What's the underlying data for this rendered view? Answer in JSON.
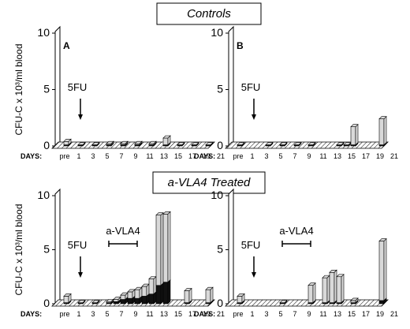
{
  "headers": [
    "Controls",
    "a-VLA4 Treated"
  ],
  "chart_data": [
    {
      "type": "bar",
      "label": "A",
      "ylabel": "CFU-C x 10³/ml blood",
      "xlabel": "DAYS:",
      "ylim": [
        0,
        10
      ],
      "yticks": [
        0,
        5,
        10
      ],
      "xticks": [
        {
          "value": -1,
          "label": "pre"
        },
        1,
        3,
        5,
        7,
        9,
        11,
        13,
        15,
        17,
        19,
        21
      ],
      "x": [
        -1,
        1,
        3,
        5,
        7,
        9,
        11,
        13,
        15,
        17,
        19
      ],
      "series": [
        {
          "color": "#111111",
          "values": [
            0.1,
            0.1,
            0.1,
            0.1,
            0.1,
            0.1,
            0.1,
            0.1,
            0.1,
            0.1,
            0.1
          ]
        },
        {
          "color": "#d9d9d9",
          "values": [
            0.3,
            0,
            0,
            0.1,
            0.1,
            0.1,
            0.1,
            0.6,
            0,
            0,
            0
          ]
        }
      ],
      "annotations": [
        {
          "text": "5FU",
          "x": 1
        }
      ]
    },
    {
      "type": "bar",
      "label": "B",
      "xlabel": "DAYS:",
      "ylim": [
        0,
        10
      ],
      "yticks": [
        0,
        5,
        10
      ],
      "xticks": [
        {
          "value": -1,
          "label": "pre"
        },
        1,
        3,
        5,
        7,
        9,
        11,
        13,
        15,
        17,
        19,
        21
      ],
      "x": [
        -1,
        3,
        5,
        7,
        9,
        13,
        14,
        15,
        19
      ],
      "series": [
        {
          "color": "#111111",
          "values": [
            0.1,
            0.1,
            0.1,
            0.1,
            0.1,
            0.1,
            0.1,
            0.1,
            0.1
          ]
        },
        {
          "color": "#d9d9d9",
          "values": [
            0,
            0,
            0,
            0,
            0,
            0,
            0,
            1.6,
            2.3
          ]
        }
      ],
      "annotations": [
        {
          "text": "5FU",
          "x": 1
        }
      ]
    },
    {
      "type": "bar",
      "ylabel": "CFU-C x 10³/ml blood",
      "xlabel": "DAYS:",
      "ylim": [
        0,
        10
      ],
      "yticks": [
        0,
        5,
        10
      ],
      "xticks": [
        {
          "value": -1,
          "label": "pre"
        },
        1,
        3,
        5,
        7,
        9,
        11,
        13,
        15,
        17,
        19,
        21
      ],
      "x": [
        -1,
        1,
        3,
        5,
        6,
        7,
        8,
        9,
        10,
        11,
        12,
        13,
        16,
        19
      ],
      "series": [
        {
          "color": "#111111",
          "values": [
            0.1,
            0.1,
            0.1,
            0.1,
            0.2,
            0.4,
            0.5,
            0.5,
            0.7,
            0.9,
            1.7,
            2.0,
            0.1,
            0.1
          ]
        },
        {
          "color": "#d9d9d9",
          "values": [
            0.6,
            0,
            0,
            0.1,
            0.2,
            0.4,
            0.6,
            0.8,
            0.9,
            1.4,
            6.5,
            6.3,
            1.1,
            1.2
          ]
        }
      ],
      "annotations": [
        {
          "text": "5FU",
          "x": 1
        },
        {
          "text": "a-VLA4",
          "x0": 5,
          "x1": 9
        }
      ]
    },
    {
      "type": "bar",
      "xlabel": "DAYS:",
      "ylim": [
        0,
        10
      ],
      "yticks": [
        0,
        5,
        10
      ],
      "xticks": [
        {
          "value": -1,
          "label": "pre"
        },
        1,
        3,
        5,
        7,
        9,
        11,
        13,
        15,
        17,
        19,
        21
      ],
      "x": [
        -1,
        5,
        9,
        11,
        12,
        13,
        15,
        19
      ],
      "series": [
        {
          "color": "#111111",
          "values": [
            0.1,
            0.1,
            0.1,
            0.1,
            0.1,
            0.1,
            0.1,
            0.3
          ]
        },
        {
          "color": "#d9d9d9",
          "values": [
            0.6,
            0,
            1.6,
            2.3,
            2.8,
            2.4,
            0.2,
            5.5
          ]
        }
      ],
      "annotations": [
        {
          "text": "5FU",
          "x": 1
        },
        {
          "text": "a-VLA4",
          "x0": 5,
          "x1": 9
        }
      ]
    }
  ]
}
